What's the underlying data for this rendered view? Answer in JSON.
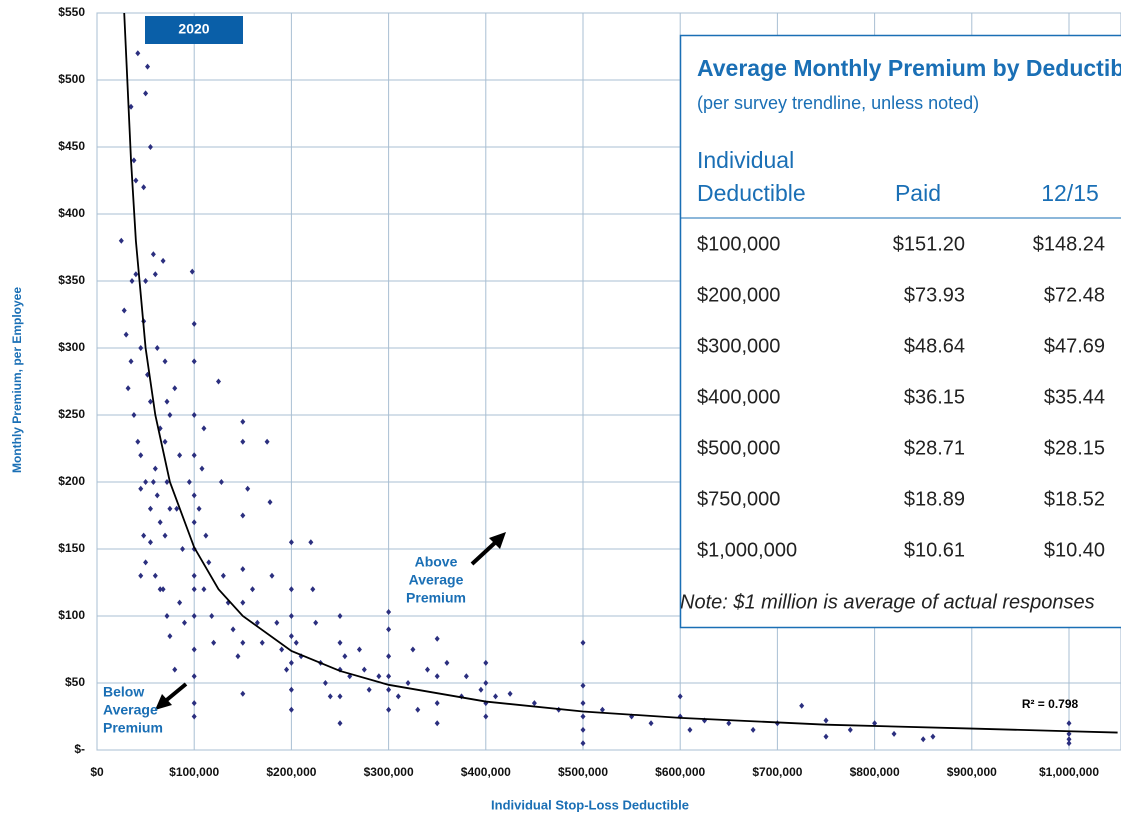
{
  "chart_data": {
    "type": "scatter",
    "x_label": "Individual Stop-Loss Deductible",
    "y_label": "Monthly Premium, per Employee",
    "color": "#2b2f7f",
    "trend_color": "#000000",
    "grid": true,
    "xlim": [
      0,
      1050000
    ],
    "xticks": [
      {
        "value": 0,
        "label": "$0"
      },
      {
        "value": 100000,
        "label": "$100,000"
      },
      {
        "value": 200000,
        "label": "$200,000"
      },
      {
        "value": 300000,
        "label": "$300,000"
      },
      {
        "value": 400000,
        "label": "$400,000"
      },
      {
        "value": 500000,
        "label": "$500,000"
      },
      {
        "value": 600000,
        "label": "$600,000"
      },
      {
        "value": 700000,
        "label": "$700,000"
      },
      {
        "value": 800000,
        "label": "$800,000"
      },
      {
        "value": 900000,
        "label": "$900,000"
      },
      {
        "value": 1000000,
        "label": "$1,000,000"
      }
    ],
    "ylim": [
      0,
      550
    ],
    "yticks": [
      {
        "value": 0,
        "label": "$-"
      },
      {
        "value": 50,
        "label": "$50"
      },
      {
        "value": 100,
        "label": "$100"
      },
      {
        "value": 150,
        "label": "$150"
      },
      {
        "value": 200,
        "label": "$200"
      },
      {
        "value": 250,
        "label": "$250"
      },
      {
        "value": 300,
        "label": "$300"
      },
      {
        "value": 350,
        "label": "$350"
      },
      {
        "value": 400,
        "label": "$400"
      },
      {
        "value": 450,
        "label": "$450"
      },
      {
        "value": 500,
        "label": "$500"
      },
      {
        "value": 550,
        "label": "$550"
      }
    ],
    "x": [
      25000,
      28000,
      30000,
      32000,
      35000,
      36000,
      38000,
      40000,
      42000,
      40000,
      35000,
      38000,
      42000,
      45000,
      48000,
      50000,
      52000,
      55000,
      50000,
      48000,
      45000,
      52000,
      55000,
      45000,
      50000,
      55000,
      48000,
      50000,
      45000,
      58000,
      60000,
      62000,
      65000,
      60000,
      58000,
      62000,
      65000,
      55000,
      60000,
      65000,
      68000,
      70000,
      72000,
      75000,
      70000,
      72000,
      75000,
      70000,
      68000,
      72000,
      75000,
      80000,
      85000,
      82000,
      88000,
      85000,
      90000,
      80000,
      95000,
      98000,
      100000,
      100000,
      100000,
      100000,
      100000,
      100000,
      100000,
      100000,
      100000,
      100000,
      100000,
      100000,
      100000,
      100000,
      105000,
      110000,
      108000,
      112000,
      115000,
      110000,
      118000,
      120000,
      125000,
      128000,
      130000,
      135000,
      140000,
      145000,
      150000,
      150000,
      150000,
      150000,
      150000,
      150000,
      150000,
      155000,
      160000,
      165000,
      170000,
      175000,
      178000,
      180000,
      185000,
      190000,
      195000,
      200000,
      200000,
      200000,
      200000,
      200000,
      200000,
      200000,
      205000,
      210000,
      220000,
      222000,
      225000,
      230000,
      235000,
      240000,
      250000,
      250000,
      250000,
      250000,
      250000,
      255000,
      260000,
      270000,
      275000,
      280000,
      290000,
      300000,
      300000,
      300000,
      300000,
      300000,
      300000,
      310000,
      320000,
      325000,
      330000,
      340000,
      350000,
      350000,
      350000,
      350000,
      360000,
      375000,
      380000,
      395000,
      400000,
      400000,
      400000,
      400000,
      410000,
      425000,
      450000,
      475000,
      500000,
      500000,
      500000,
      500000,
      500000,
      500000,
      520000,
      550000,
      570000,
      600000,
      600000,
      610000,
      625000,
      650000,
      675000,
      700000,
      725000,
      750000,
      750000,
      775000,
      800000,
      820000,
      850000,
      860000,
      1000000,
      1000000,
      1000000,
      1000000
    ],
    "values": [
      380,
      328,
      310,
      270,
      480,
      350,
      440,
      425,
      520,
      355,
      290,
      250,
      230,
      195,
      420,
      490,
      510,
      450,
      350,
      320,
      300,
      280,
      260,
      220,
      200,
      180,
      160,
      140,
      130,
      370,
      355,
      300,
      240,
      210,
      200,
      190,
      170,
      155,
      130,
      120,
      365,
      290,
      260,
      250,
      230,
      200,
      180,
      160,
      120,
      100,
      85,
      270,
      220,
      180,
      150,
      110,
      95,
      60,
      200,
      357,
      318,
      290,
      250,
      220,
      190,
      170,
      150,
      130,
      120,
      100,
      75,
      55,
      35,
      25,
      180,
      240,
      210,
      160,
      140,
      120,
      100,
      80,
      275,
      200,
      130,
      110,
      90,
      70,
      245,
      230,
      175,
      135,
      110,
      80,
      42,
      195,
      120,
      95,
      80,
      230,
      185,
      130,
      95,
      75,
      60,
      155,
      120,
      100,
      85,
      65,
      45,
      30,
      80,
      70,
      155,
      120,
      95,
      65,
      50,
      40,
      100,
      80,
      60,
      40,
      20,
      70,
      55,
      75,
      60,
      45,
      55,
      103,
      90,
      70,
      55,
      45,
      30,
      40,
      50,
      75,
      30,
      60,
      83,
      55,
      35,
      20,
      65,
      40,
      55,
      45,
      65,
      50,
      35,
      25,
      40,
      42,
      35,
      30,
      80,
      48,
      35,
      25,
      15,
      5,
      30,
      25,
      20,
      40,
      25,
      15,
      22,
      20,
      15,
      20,
      33,
      22,
      10,
      15,
      20,
      12,
      8,
      10,
      20,
      12,
      8,
      5
    ],
    "trendline": {
      "x": [
        28000,
        35000,
        40000,
        50000,
        60000,
        75000,
        100000,
        125000,
        150000,
        200000,
        250000,
        300000,
        400000,
        500000,
        600000,
        750000,
        900000,
        1000000,
        1050000
      ],
      "values": [
        550,
        440,
        380,
        300,
        250,
        200,
        151.2,
        120,
        100,
        73.93,
        59,
        48.64,
        36.15,
        28.71,
        24,
        18.89,
        16,
        14,
        13
      ]
    },
    "annotations": [
      {
        "text": "2020"
      },
      {
        "lines": [
          "Above",
          "Average",
          "Premium"
        ]
      },
      {
        "lines": [
          "Below",
          "Average",
          "Premium"
        ]
      },
      {
        "text": "R² = 0.798"
      }
    ]
  },
  "table": {
    "title": "Average Monthly Premium by Deductible",
    "subtitle": "(per survey trendline, unless noted)",
    "header": [
      [
        "Individual",
        "Deductible"
      ],
      [
        "Paid"
      ],
      [
        "12/15"
      ]
    ],
    "rows": [
      [
        "$100,000",
        "$151.20",
        "$148.24"
      ],
      [
        "$200,000",
        "$73.93",
        "$72.48"
      ],
      [
        "$300,000",
        "$48.64",
        "$47.69"
      ],
      [
        "$400,000",
        "$36.15",
        "$35.44"
      ],
      [
        "$500,000",
        "$28.71",
        "$28.15"
      ],
      [
        "$750,000",
        "$18.89",
        "$18.52"
      ],
      [
        "$1,000,000",
        "$10.61",
        "$10.40"
      ]
    ],
    "note": "Note: $1 million is average of actual responses"
  }
}
